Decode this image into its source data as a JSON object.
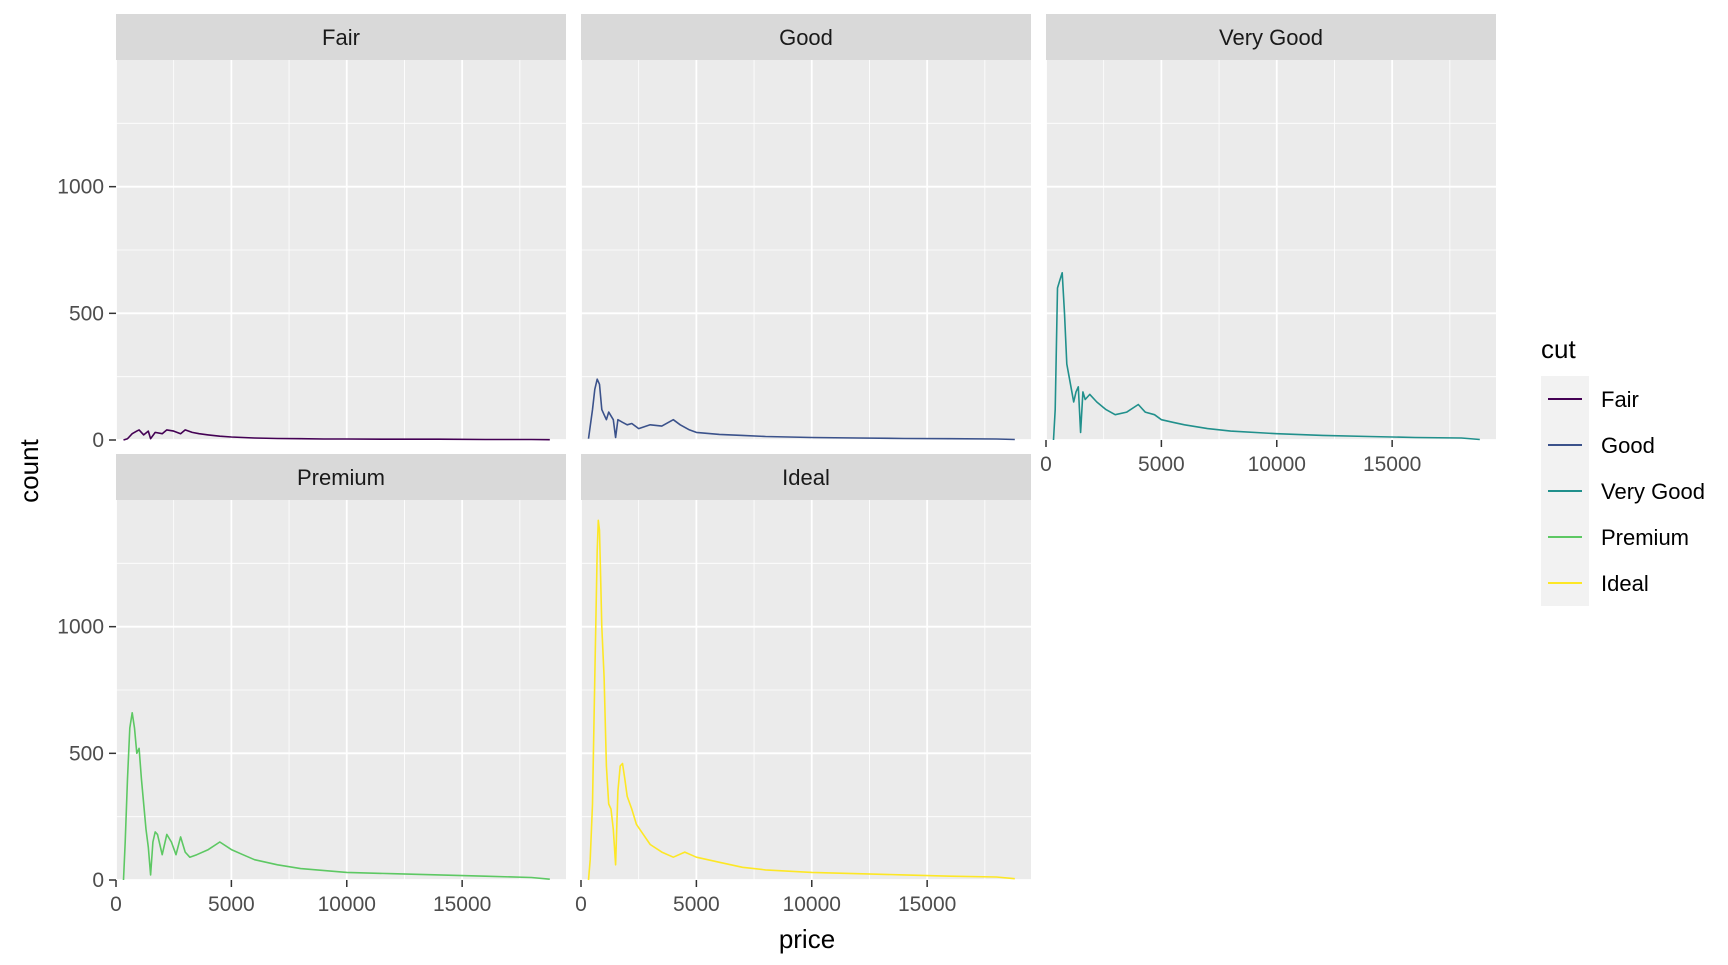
{
  "chart_data": {
    "type": "line",
    "facet_by": "cut",
    "facet_layout": "3 columns, 2 rows, shared axes",
    "xlabel": "price",
    "ylabel": "count",
    "xlim": [
      0,
      19500
    ],
    "ylim": [
      0,
      1500
    ],
    "x_ticks": [
      0,
      5000,
      10000,
      15000
    ],
    "x_tick_labels": [
      "0",
      "5000",
      "10000",
      "15000"
    ],
    "y_ticks": [
      0,
      500,
      1000
    ],
    "y_tick_labels": [
      "0",
      "500",
      "1000"
    ],
    "grid": true,
    "legend": {
      "title": "cut",
      "placement": "right",
      "entries": [
        "Fair",
        "Good",
        "Very Good",
        "Premium",
        "Ideal"
      ]
    },
    "colors": {
      "Fair": "#440154",
      "Good": "#3b528b",
      "Very Good": "#21908c",
      "Premium": "#5dc863",
      "Ideal": "#fde725",
      "panel_background": "#ebebeb",
      "strip_background": "#d9d9d9",
      "gridline": "#ffffff"
    },
    "series": [
      {
        "name": "Fair",
        "x": [
          326,
          500,
          700,
          900,
          1000,
          1200,
          1400,
          1500,
          1700,
          2000,
          2200,
          2500,
          2800,
          3000,
          3300,
          3600,
          4000,
          4500,
          5000,
          6000,
          7000,
          8000,
          9000,
          10000,
          12000,
          14000,
          16000,
          18000,
          18800
        ],
        "values": [
          0,
          5,
          25,
          35,
          40,
          20,
          35,
          5,
          30,
          25,
          40,
          35,
          25,
          40,
          30,
          25,
          20,
          15,
          12,
          8,
          6,
          5,
          4,
          4,
          3,
          3,
          2,
          2,
          1
        ]
      },
      {
        "name": "Good",
        "x": [
          326,
          500,
          600,
          700,
          800,
          900,
          1000,
          1100,
          1200,
          1400,
          1500,
          1600,
          1800,
          2000,
          2200,
          2500,
          3000,
          3500,
          4000,
          4300,
          4700,
          5000,
          6000,
          7000,
          8000,
          10000,
          12000,
          14000,
          16000,
          18000,
          18800
        ],
        "values": [
          5,
          120,
          200,
          240,
          220,
          120,
          100,
          80,
          110,
          80,
          10,
          80,
          70,
          60,
          65,
          45,
          60,
          55,
          80,
          60,
          40,
          30,
          22,
          18,
          14,
          10,
          8,
          6,
          5,
          4,
          2
        ]
      },
      {
        "name": "Very Good",
        "x": [
          326,
          400,
          500,
          600,
          700,
          800,
          900,
          1000,
          1100,
          1200,
          1300,
          1400,
          1500,
          1600,
          1700,
          1900,
          2200,
          2600,
          3000,
          3500,
          4000,
          4300,
          4700,
          5000,
          5500,
          6000,
          7000,
          8000,
          10000,
          12000,
          14000,
          16000,
          18000,
          18800
        ],
        "values": [
          0,
          120,
          600,
          630,
          660,
          500,
          300,
          250,
          200,
          150,
          190,
          210,
          30,
          190,
          160,
          180,
          150,
          120,
          100,
          110,
          140,
          110,
          100,
          80,
          70,
          60,
          45,
          35,
          25,
          18,
          14,
          10,
          8,
          2
        ]
      },
      {
        "name": "Premium",
        "x": [
          326,
          400,
          500,
          600,
          700,
          800,
          900,
          1000,
          1100,
          1200,
          1300,
          1400,
          1500,
          1600,
          1700,
          1800,
          2000,
          2200,
          2400,
          2600,
          2800,
          3000,
          3200,
          3500,
          4000,
          4500,
          5000,
          5500,
          6000,
          7000,
          8000,
          10000,
          12000,
          14000,
          16000,
          18000,
          18800
        ],
        "values": [
          0,
          150,
          400,
          600,
          660,
          600,
          500,
          520,
          400,
          300,
          200,
          130,
          20,
          150,
          190,
          180,
          100,
          180,
          150,
          100,
          170,
          110,
          90,
          100,
          120,
          150,
          120,
          100,
          80,
          60,
          45,
          30,
          25,
          20,
          15,
          10,
          3
        ]
      },
      {
        "name": "Ideal",
        "x": [
          326,
          400,
          500,
          600,
          700,
          750,
          800,
          850,
          900,
          1000,
          1100,
          1200,
          1300,
          1400,
          1500,
          1600,
          1700,
          1800,
          1900,
          2000,
          2200,
          2400,
          2700,
          3000,
          3500,
          4000,
          4500,
          5000,
          6000,
          7000,
          8000,
          10000,
          12000,
          14000,
          16000,
          18000,
          18800
        ],
        "values": [
          0,
          80,
          300,
          800,
          1300,
          1420,
          1380,
          1200,
          1000,
          800,
          450,
          300,
          280,
          200,
          60,
          350,
          450,
          460,
          400,
          330,
          280,
          220,
          180,
          140,
          110,
          90,
          110,
          90,
          70,
          50,
          40,
          30,
          25,
          20,
          15,
          12,
          5
        ]
      }
    ]
  }
}
